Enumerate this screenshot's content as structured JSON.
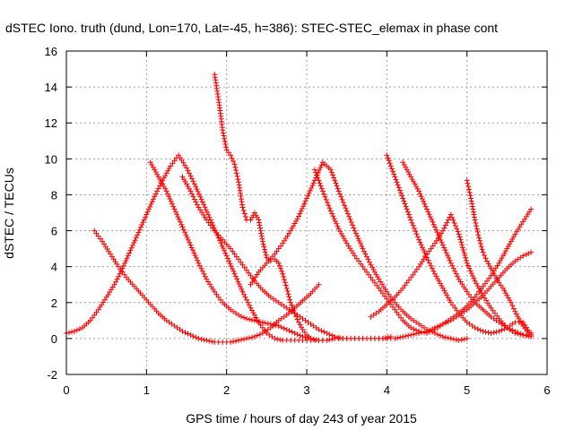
{
  "chart_data": {
    "type": "scatter",
    "title": "dSTEC Iono. truth (dund, Lon=170, Lat=-45, h=386): STEC-STEC_elemax in phase cont",
    "xlabel": "GPS time / hours of day 243 of year 2015",
    "ylabel": "dSTEC  / TECUs",
    "xlim": [
      0,
      6
    ],
    "ylim": [
      -2,
      16
    ],
    "x_ticks": [
      "0",
      "1",
      "2",
      "3",
      "4",
      "5",
      "6"
    ],
    "y_ticks": [
      "-2",
      "0",
      "2",
      "4",
      "6",
      "8",
      "10",
      "12",
      "14",
      "16"
    ],
    "grid": true,
    "marker": "+",
    "color": "#ff0000",
    "series": [
      {
        "x": [
          0.0,
          0.1,
          0.2,
          0.3,
          0.4,
          0.5,
          0.6,
          0.7,
          0.8,
          0.9,
          1.0,
          1.1,
          1.2,
          1.3,
          1.4,
          1.5,
          1.6,
          1.7,
          1.8,
          1.9,
          2.0,
          2.1,
          2.2,
          2.3,
          2.4,
          2.5,
          2.6,
          2.7,
          2.8,
          2.9,
          3.0,
          3.1,
          3.2
        ],
        "y": [
          0.3,
          0.4,
          0.6,
          1.0,
          1.6,
          2.3,
          3.0,
          3.9,
          4.9,
          5.9,
          6.9,
          7.9,
          8.8,
          9.6,
          10.2,
          9.5,
          8.6,
          7.6,
          6.6,
          5.6,
          4.6,
          3.6,
          2.6,
          1.7,
          0.9,
          0.3,
          0.0,
          -0.1,
          -0.1,
          -0.1,
          -0.1,
          -0.1,
          -0.1
        ]
      },
      {
        "x": [
          0.35,
          0.45,
          0.55,
          0.65,
          0.75,
          0.85,
          0.95,
          1.05,
          1.15,
          1.25,
          1.35,
          1.45,
          1.55,
          1.65,
          1.75,
          1.85,
          1.95,
          2.05,
          2.15,
          2.25,
          2.35,
          2.45,
          2.55,
          2.65,
          2.75,
          2.85,
          2.95,
          3.05,
          3.15
        ],
        "y": [
          6.0,
          5.4,
          4.7,
          4.0,
          3.4,
          2.9,
          2.4,
          1.9,
          1.4,
          1.0,
          0.7,
          0.4,
          0.2,
          0.0,
          -0.1,
          -0.2,
          -0.2,
          -0.2,
          -0.1,
          0.0,
          0.1,
          0.3,
          0.6,
          1.0,
          1.3,
          1.7,
          2.1,
          2.5,
          3.0
        ]
      },
      {
        "x": [
          1.05,
          1.15,
          1.25,
          1.35,
          1.45,
          1.55,
          1.65,
          1.75,
          1.85,
          1.95,
          2.05,
          2.15,
          2.25,
          2.35,
          2.45,
          2.55,
          2.65,
          2.75,
          2.85,
          2.95,
          3.05,
          3.15,
          3.25,
          3.35,
          3.45,
          3.55
        ],
        "y": [
          9.8,
          9.0,
          8.2,
          7.2,
          6.2,
          5.2,
          4.2,
          3.3,
          2.6,
          2.0,
          1.6,
          1.3,
          1.1,
          1.0,
          0.9,
          0.8,
          0.7,
          0.5,
          0.3,
          0.1,
          0.0,
          -0.1,
          -0.1,
          0.0,
          0.0,
          0.0
        ]
      },
      {
        "x": [
          1.45,
          1.55,
          1.65,
          1.75,
          1.85,
          1.95,
          2.05,
          2.15,
          2.25,
          2.35,
          2.45,
          2.55,
          2.65,
          2.75,
          2.85,
          2.95,
          3.05,
          3.15,
          3.25,
          3.35,
          3.45,
          3.55,
          3.65,
          3.75,
          3.85,
          3.95,
          4.05
        ],
        "y": [
          9.0,
          8.2,
          7.3,
          6.6,
          6.0,
          5.5,
          5.0,
          4.4,
          3.8,
          3.2,
          2.7,
          2.3,
          2.0,
          1.7,
          1.4,
          1.1,
          0.8,
          0.5,
          0.3,
          0.1,
          0.0,
          0.0,
          0.0,
          0.0,
          0.0,
          0.0,
          0.1
        ]
      },
      {
        "x": [
          1.85,
          1.9,
          1.95,
          2.0,
          2.05,
          2.1,
          2.15,
          2.2,
          2.25,
          2.3,
          2.35,
          2.4,
          2.45,
          2.5,
          2.55,
          2.6,
          2.65,
          2.7,
          2.75,
          2.8,
          2.85,
          2.9,
          2.95,
          3.0,
          3.05
        ],
        "y": [
          14.7,
          13.3,
          11.6,
          10.5,
          10.2,
          9.7,
          8.7,
          7.3,
          6.6,
          6.6,
          7.0,
          6.6,
          5.4,
          4.5,
          4.3,
          4.4,
          4.2,
          3.6,
          2.8,
          2.0,
          1.4,
          0.9,
          0.5,
          0.2,
          0.0
        ]
      },
      {
        "x": [
          2.3,
          2.4,
          2.5,
          2.6,
          2.7,
          2.8,
          2.9,
          3.0,
          3.1,
          3.2,
          3.3,
          3.4,
          3.5,
          3.6,
          3.7,
          3.8,
          3.9,
          4.0,
          4.1,
          4.2,
          4.3,
          4.4,
          4.5,
          4.6,
          4.7,
          4.8,
          4.9,
          5.0
        ],
        "y": [
          3.0,
          3.7,
          4.2,
          4.7,
          5.3,
          6.0,
          6.8,
          7.8,
          8.8,
          9.8,
          9.4,
          8.2,
          7.1,
          6.0,
          5.0,
          4.1,
          3.3,
          2.6,
          2.0,
          1.5,
          1.1,
          0.8,
          0.5,
          0.3,
          0.1,
          0.0,
          -0.1,
          0.0
        ]
      },
      {
        "x": [
          3.1,
          3.2,
          3.3,
          3.4,
          3.5,
          3.6,
          3.7,
          3.8,
          3.9,
          4.0,
          4.1,
          4.2,
          4.3,
          4.4,
          4.5,
          4.6,
          4.7,
          4.8,
          4.9,
          5.0,
          5.1,
          5.2,
          5.3,
          5.4,
          5.5,
          5.6,
          5.7,
          5.8
        ],
        "y": [
          9.4,
          8.2,
          7.1,
          6.1,
          5.3,
          4.6,
          4.0,
          3.4,
          2.8,
          2.2,
          1.6,
          1.0,
          0.6,
          0.4,
          0.3,
          0.5,
          0.8,
          1.1,
          1.4,
          1.8,
          2.3,
          2.9,
          3.5,
          4.2,
          5.0,
          5.8,
          6.5,
          7.2
        ]
      },
      {
        "x": [
          3.6,
          3.7,
          3.8,
          3.9,
          4.0,
          4.1,
          4.2,
          4.3,
          4.4,
          4.5,
          4.6,
          4.7,
          4.8,
          4.9,
          5.0,
          5.1,
          5.2,
          5.3,
          5.4,
          5.5,
          5.6,
          5.7,
          5.8
        ],
        "y": [
          0.0,
          0.0,
          0.0,
          0.0,
          0.0,
          0.0,
          0.1,
          0.2,
          0.3,
          0.4,
          0.6,
          0.8,
          1.0,
          1.3,
          1.6,
          2.0,
          2.4,
          2.9,
          3.4,
          3.9,
          4.3,
          4.6,
          4.8
        ]
      },
      {
        "x": [
          3.8,
          3.9,
          4.0,
          4.1,
          4.2,
          4.3,
          4.4,
          4.5,
          4.6,
          4.7,
          4.8,
          4.9,
          5.0,
          5.1,
          5.2,
          5.3,
          5.4,
          5.5,
          5.6,
          5.7,
          5.8
        ],
        "y": [
          1.2,
          1.5,
          1.9,
          2.3,
          2.8,
          3.4,
          4.0,
          4.7,
          5.3,
          6.0,
          6.9,
          5.8,
          4.2,
          3.2,
          2.4,
          1.7,
          1.1,
          0.6,
          0.3,
          0.2,
          0.2
        ]
      },
      {
        "x": [
          4.0,
          4.1,
          4.2,
          4.3,
          4.4,
          4.5,
          4.6,
          4.7,
          4.8,
          4.9,
          5.0,
          5.1,
          5.2,
          5.3,
          5.4,
          5.5,
          5.6,
          5.7,
          5.8
        ],
        "y": [
          10.2,
          9.0,
          7.8,
          6.6,
          5.5,
          4.5,
          3.6,
          2.8,
          2.0,
          1.4,
          0.9,
          0.6,
          0.4,
          0.3,
          0.4,
          0.6,
          0.9,
          0.9,
          0.2
        ]
      },
      {
        "x": [
          4.2,
          4.3,
          4.4,
          4.5,
          4.6,
          4.7,
          4.8,
          4.9,
          5.0,
          5.1,
          5.2,
          5.3,
          5.4,
          5.5,
          5.6,
          5.7,
          5.8
        ],
        "y": [
          9.8,
          9.0,
          8.2,
          7.2,
          6.2,
          5.2,
          4.2,
          3.3,
          2.6,
          2.0,
          1.6,
          1.2,
          0.9,
          0.6,
          0.4,
          0.2,
          0.1
        ]
      },
      {
        "x": [
          5.0,
          5.05,
          5.1,
          5.15,
          5.2,
          5.25,
          5.3,
          5.35,
          5.4,
          5.45,
          5.5,
          5.55,
          5.6,
          5.65,
          5.7,
          5.75,
          5.8
        ],
        "y": [
          8.8,
          7.8,
          6.6,
          5.6,
          4.8,
          4.3,
          3.9,
          3.5,
          3.1,
          2.8,
          2.4,
          2.0,
          1.5,
          1.1,
          0.7,
          0.4,
          0.3
        ]
      }
    ]
  }
}
